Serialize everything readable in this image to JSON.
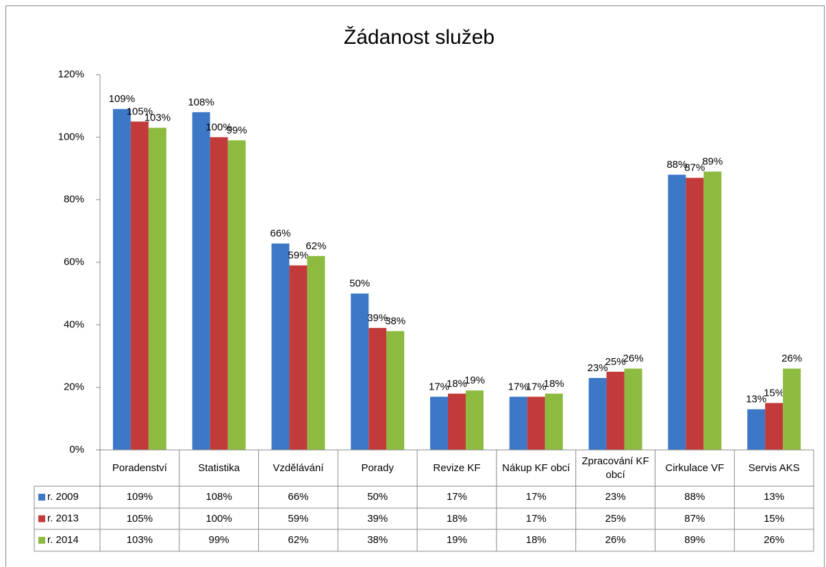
{
  "chart_data": {
    "type": "bar",
    "title": "Žádanost služeb",
    "categories": [
      "Poradenství",
      "Statistika",
      "Vzdělávání",
      "Porady",
      "Revize KF",
      "Nákup KF obcí",
      "Zpracování KF obcí",
      "Cirkulace VF",
      "Servis AKS"
    ],
    "series": [
      {
        "name": "r. 2009",
        "color": "#3d78c7",
        "values": [
          109,
          108,
          66,
          50,
          17,
          17,
          23,
          88,
          13
        ],
        "value_labels": [
          "109%",
          "108%",
          "66%",
          "50%",
          "17%",
          "17%",
          "23%",
          "88%",
          "13%"
        ]
      },
      {
        "name": "r. 2013",
        "color": "#c23b3a",
        "values": [
          105,
          100,
          59,
          39,
          18,
          17,
          25,
          87,
          15
        ],
        "value_labels": [
          "105%",
          "100%",
          "59%",
          "39%",
          "18%",
          "17%",
          "25%",
          "87%",
          "15%"
        ]
      },
      {
        "name": "r. 2014",
        "color": "#8dbb40",
        "values": [
          103,
          99,
          62,
          38,
          19,
          18,
          26,
          89,
          26
        ],
        "value_labels": [
          "103%",
          "99%",
          "62%",
          "38%",
          "19%",
          "18%",
          "26%",
          "89%",
          "26%"
        ]
      }
    ],
    "ylim": [
      0,
      120
    ],
    "yticks": [
      {
        "value": 0,
        "label": "0%"
      },
      {
        "value": 20,
        "label": "20%"
      },
      {
        "value": 40,
        "label": "40%"
      },
      {
        "value": 60,
        "label": "60%"
      },
      {
        "value": 80,
        "label": "80%"
      },
      {
        "value": 100,
        "label": "100%"
      },
      {
        "value": 120,
        "label": "120%"
      }
    ],
    "grid": false,
    "legend": "table"
  }
}
